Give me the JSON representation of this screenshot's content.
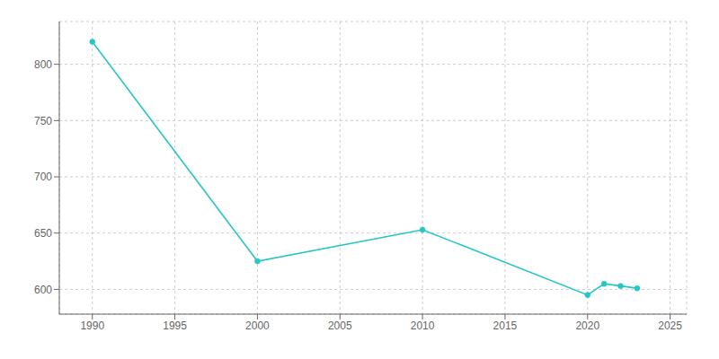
{
  "chart_data": {
    "type": "line",
    "x": [
      1990,
      2000,
      2010,
      2020,
      2021,
      2022,
      2023
    ],
    "values": [
      820,
      625,
      653,
      595,
      605,
      603,
      601
    ],
    "color": "#26c6c6",
    "marker": "circle",
    "xlim": [
      1988,
      2026
    ],
    "ylim": [
      578,
      838
    ],
    "xticks": [
      1990,
      1995,
      2000,
      2005,
      2010,
      2015,
      2020,
      2025
    ],
    "yticks": [
      600,
      650,
      700,
      750,
      800
    ],
    "grid": true
  }
}
